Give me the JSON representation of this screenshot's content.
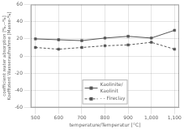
{
  "chart_data": {
    "type": "line",
    "x": [
      500,
      600,
      700,
      800,
      900,
      1000,
      1100
    ],
    "series": [
      {
        "name": "Kaolinite/\nKaolinit",
        "color": "#555555",
        "values": [
          20,
          19,
          18,
          21,
          23,
          21,
          30
        ],
        "line_style": "solid",
        "marker": "square"
      },
      {
        "name": "- - Fireclay",
        "color": "#555555",
        "values": [
          10,
          8,
          10,
          12,
          13,
          16,
          8
        ],
        "line_style": "dashed",
        "marker": "square"
      }
    ],
    "xlabel": "temperature/Temperatur [°C]",
    "ylabel": "coefficient water absorption [%.--%]\nKoeffizient Wasseraufnahme [Masse-%]",
    "xlim": [
      480,
      1120
    ],
    "xticks": [
      500,
      600,
      700,
      800,
      900,
      1000,
      1100
    ],
    "ylim": [
      -60,
      60
    ],
    "yticks": [
      -60,
      -40,
      -20,
      0,
      20,
      40,
      60
    ],
    "grid": true,
    "legend": "lower center"
  }
}
